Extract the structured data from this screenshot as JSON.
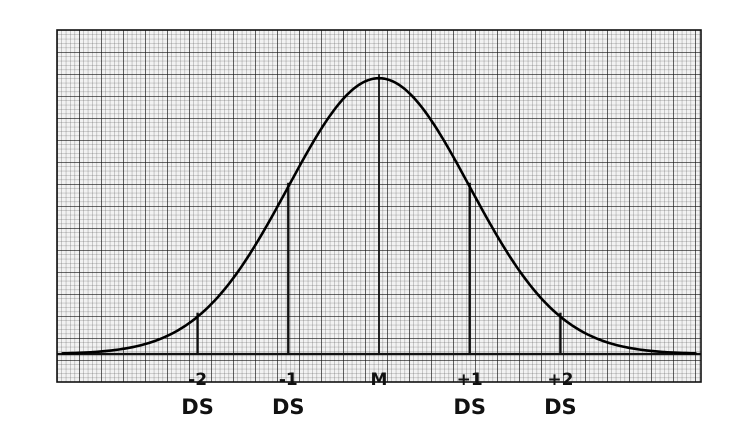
{
  "chart_data": {
    "type": "line",
    "title": "",
    "xlabel": "",
    "ylabel": "",
    "grid": true,
    "xlim": [
      -3.55,
      3.55
    ],
    "x_ticks": [
      {
        "value": -2,
        "label": "-2",
        "unit": "DS"
      },
      {
        "value": -1,
        "label": "-1",
        "unit": "DS"
      },
      {
        "value": 0,
        "label": "M",
        "unit": ""
      },
      {
        "value": 1,
        "label": "+1",
        "unit": "DS"
      },
      {
        "value": 2,
        "label": "+2",
        "unit": "DS"
      }
    ],
    "series": [
      {
        "curve": "normal distribution",
        "mean": 0,
        "sd": 1,
        "x": [
          -3.5,
          -3,
          -2.5,
          -2,
          -1.5,
          -1,
          -0.5,
          0,
          0.5,
          1,
          1.5,
          2,
          2.5,
          3,
          3.5
        ],
        "y": [
          0.0009,
          0.0044,
          0.0175,
          0.054,
          0.1295,
          0.242,
          0.3521,
          0.3989,
          0.3521,
          0.242,
          0.1295,
          0.054,
          0.0175,
          0.0044,
          0.0009
        ]
      }
    ],
    "ylim": [
      0,
      0.405
    ]
  }
}
